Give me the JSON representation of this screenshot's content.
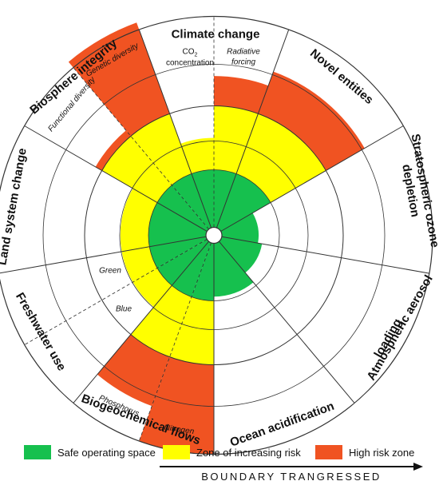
{
  "colors": {
    "safe": "#16c04e",
    "increasing": "#ffff00",
    "high": "#f05322",
    "stroke": "#333333"
  },
  "boundaries": [
    {
      "key": "climate",
      "label": "Climate change",
      "color": "",
      "sub": [
        {
          "label": "CO2 concentration",
          "text_main": "CO",
          "text_sub": "2",
          "text_line2": "concentration",
          "level": 0.75,
          "color": "yellow"
        },
        {
          "label": "Radiative forcing",
          "text_main": "Radiative",
          "text_line2": "forcing",
          "level": 1.2,
          "color": "red"
        }
      ]
    },
    {
      "key": "novel",
      "label": "Novel entities",
      "level": 1.3,
      "color": "red"
    },
    {
      "key": "ozone",
      "label": "Stratospheric ozone depletion",
      "line1": "Stratospheric ozone",
      "line2": "depletion",
      "level": 0.25,
      "color": "green"
    },
    {
      "key": "aerosol",
      "label": "Atmospheric aerosol loading",
      "line1": "Atmospheric aerosol",
      "line2": "loading",
      "level": 0.3,
      "color": "green"
    },
    {
      "key": "ocean",
      "label": "Ocean acidification",
      "level": 0.45,
      "color": "green"
    },
    {
      "key": "biogeo",
      "label": "Biogeochemical flows",
      "sub": [
        {
          "label": "Nitrogen",
          "level": 1.6,
          "color": "red"
        },
        {
          "label": "Phosphorus",
          "level": 1.35,
          "color": "red"
        }
      ]
    },
    {
      "key": "freshwater",
      "label": "Freshwater use",
      "sub": [
        {
          "label": "Blue",
          "level": 0.72,
          "color": "yellow"
        },
        {
          "label": "Green",
          "level": 0.72,
          "color": "yellow"
        }
      ]
    },
    {
      "key": "land",
      "label": "Land system change",
      "level": 0.72,
      "color": "yellow"
    },
    {
      "key": "biosphere",
      "label": "Biosphere integrity",
      "sub": [
        {
          "label": "Functional diversity",
          "level": 1.05,
          "color": "red"
        },
        {
          "label": "Genetic diversity",
          "level": 1.65,
          "color": "red"
        }
      ]
    }
  ],
  "legend": {
    "safe": "Safe operating space",
    "increasing": "Zone of increasing risk",
    "high": "High risk zone"
  },
  "arrow_label": "BOUNDARY TRANGRESSED"
}
